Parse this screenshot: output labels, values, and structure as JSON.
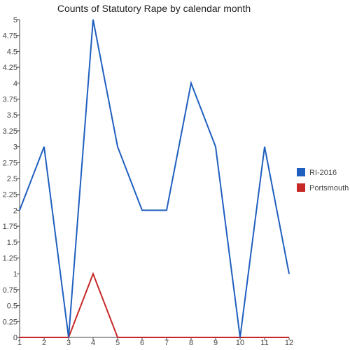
{
  "chart_data": {
    "type": "line",
    "title": "Counts of Statutory Rape by calendar month",
    "xlabel": "",
    "ylabel": "",
    "x": [
      1,
      2,
      3,
      4,
      5,
      6,
      7,
      8,
      9,
      10,
      11,
      12
    ],
    "ylim": [
      0,
      5
    ],
    "yticks": [
      "0",
      "0.25",
      "0.5",
      "0.75",
      "1",
      "1.25",
      "1.5",
      "1.75",
      "2",
      "2.25",
      "2.5",
      "2.75",
      "3",
      "3.25",
      "3.5",
      "3.75",
      "4",
      "4.25",
      "4.5",
      "4.75",
      "5"
    ],
    "grid": false,
    "legend_position": "right",
    "series": [
      {
        "name": "RI-2016",
        "color": "#1f5fbf",
        "values": [
          2,
          3,
          0,
          5,
          3,
          2,
          2,
          4,
          3,
          0,
          3,
          1
        ]
      },
      {
        "name": "Portsmouth",
        "color": "#c62828",
        "values": [
          0,
          0,
          0,
          1,
          0,
          0,
          0,
          0,
          0,
          0,
          0,
          0
        ]
      }
    ]
  }
}
